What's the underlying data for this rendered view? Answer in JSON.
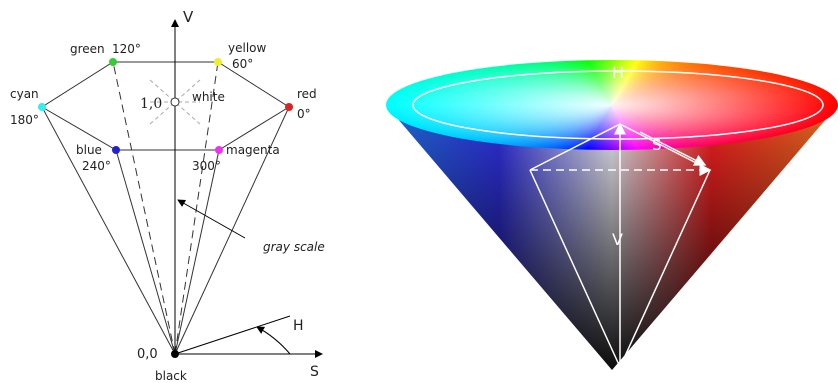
{
  "left": {
    "axis_v": "V",
    "vertices": [
      {
        "name": "green",
        "angle": "120°"
      },
      {
        "name": "yellow",
        "angle": "60°"
      },
      {
        "name": "cyan",
        "angle": "180°"
      },
      {
        "name": "red",
        "angle": "0°"
      },
      {
        "name": "blue",
        "angle": "240°"
      },
      {
        "name": "magenta",
        "angle": "300°"
      }
    ],
    "white_value": "1,0",
    "white": "white",
    "gray_scale": "gray scale",
    "hue": "H",
    "origin": "0,0",
    "black": "black",
    "axis_s": "S"
  },
  "right": {
    "hue": "H",
    "saturation": "S",
    "value": "V"
  }
}
